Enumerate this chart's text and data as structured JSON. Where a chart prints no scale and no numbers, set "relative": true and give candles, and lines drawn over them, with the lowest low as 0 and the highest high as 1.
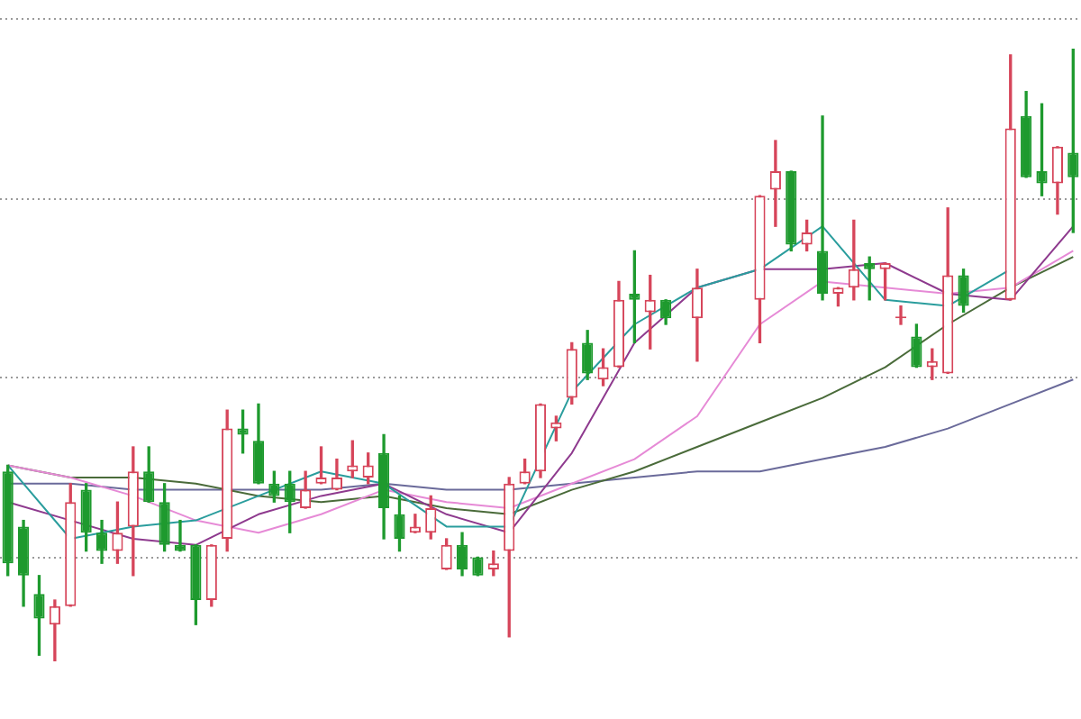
{
  "chart_data": {
    "type": "candlestick",
    "relative": true,
    "grid": true,
    "categories": [
      null,
      null,
      null,
      null,
      null,
      null,
      null,
      null,
      null,
      null,
      null,
      null,
      null,
      null,
      null,
      null,
      null,
      null,
      null,
      null,
      null,
      null,
      null,
      null,
      null,
      null,
      null,
      null,
      null,
      null,
      null,
      null,
      null,
      null,
      null,
      null,
      null,
      null,
      null,
      null,
      null,
      null,
      null,
      null,
      null,
      null,
      null,
      null,
      null,
      null,
      null,
      null,
      null,
      null,
      null,
      null,
      null,
      null,
      null,
      null,
      null,
      null,
      null,
      null,
      null,
      null,
      null,
      null,
      null
    ],
    "ohlc": [
      [
        0.31,
        0.32,
        0.14,
        0.16
      ],
      [
        0.22,
        0.23,
        0.09,
        0.14
      ],
      [
        0.11,
        0.14,
        0.01,
        0.07
      ],
      [
        0.06,
        0.1,
        0,
        0.09
      ],
      [
        0.09,
        0.29,
        0.09,
        0.26
      ],
      [
        0.28,
        0.29,
        0.18,
        0.21
      ],
      [
        0.21,
        0.23,
        0.16,
        0.18
      ],
      [
        0.18,
        0.26,
        0.16,
        0.21
      ],
      [
        0.22,
        0.35,
        0.14,
        0.31
      ],
      [
        0.31,
        0.35,
        0.26,
        0.26
      ],
      [
        0.26,
        0.29,
        0.18,
        0.19
      ],
      [
        0.19,
        0.23,
        0.18,
        0.18
      ],
      [
        0.19,
        0.19,
        0.06,
        0.1
      ],
      [
        0.1,
        0.19,
        0.09,
        0.19
      ],
      [
        0.2,
        0.41,
        0.18,
        0.38
      ],
      [
        0.38,
        0.41,
        0.34,
        0.37
      ],
      [
        0.36,
        0.42,
        0.29,
        0.29
      ],
      [
        0.29,
        0.31,
        0.26,
        0.27
      ],
      [
        0.29,
        0.31,
        0.21,
        0.26
      ],
      [
        0.25,
        0.31,
        0.25,
        0.28
      ],
      [
        0.29,
        0.35,
        0.29,
        0.3
      ],
      [
        0.28,
        0.33,
        0.28,
        0.3
      ],
      [
        0.31,
        0.36,
        0.3,
        0.32
      ],
      [
        0.3,
        0.34,
        0.29,
        0.32
      ],
      [
        0.34,
        0.37,
        0.2,
        0.25
      ],
      [
        0.24,
        0.27,
        0.18,
        0.2
      ],
      [
        0.21,
        0.24,
        0.21,
        0.22
      ],
      [
        0.21,
        0.27,
        0.2,
        0.25
      ],
      [
        0.15,
        0.2,
        0.15,
        0.19
      ],
      [
        0.19,
        0.21,
        0.14,
        0.15
      ],
      [
        0.17,
        0.17,
        0.14,
        0.14
      ],
      [
        0.15,
        0.18,
        0.14,
        0.16
      ],
      [
        0.18,
        0.3,
        0.04,
        0.29
      ],
      [
        0.29,
        0.33,
        0.29,
        0.31
      ],
      [
        0.31,
        0.42,
        0.3,
        0.42
      ],
      [
        0.38,
        0.4,
        0.36,
        0.39
      ],
      [
        0.43,
        0.52,
        0.42,
        0.51
      ],
      [
        0.52,
        0.54,
        0.46,
        0.47
      ],
      [
        0.46,
        0.51,
        0.45,
        0.48
      ],
      [
        0.48,
        0.62,
        0.48,
        0.59
      ],
      [
        0.6,
        0.67,
        0.52,
        0.59
      ],
      [
        0.57,
        0.63,
        0.51,
        0.59
      ],
      [
        0.59,
        0.59,
        0.55,
        0.56
      ],
      null,
      [
        0.56,
        0.64,
        0.49,
        0.61
      ],
      null,
      null,
      null,
      [
        0.59,
        0.76,
        0.52,
        0.76
      ],
      [
        0.77,
        0.85,
        0.71,
        0.8
      ],
      [
        0.8,
        0.8,
        0.67,
        0.68
      ],
      [
        0.68,
        0.72,
        0.67,
        0.7
      ],
      [
        0.67,
        0.89,
        0.59,
        0.6
      ],
      [
        0.6,
        0.61,
        0.58,
        0.61
      ],
      [
        0.61,
        0.72,
        0.59,
        0.64
      ],
      [
        0.65,
        0.66,
        0.59,
        0.64
      ],
      [
        0.64,
        0.65,
        0.59,
        0.65
      ],
      [
        0.56,
        0.58,
        0.55,
        0.56
      ],
      [
        0.53,
        0.55,
        0.48,
        0.48
      ],
      [
        0.48,
        0.51,
        0.46,
        0.49
      ],
      [
        0.47,
        0.74,
        0.47,
        0.63
      ],
      [
        0.63,
        0.64,
        0.57,
        0.58
      ],
      null,
      null,
      [
        0.59,
        0.99,
        0.59,
        0.87
      ],
      [
        0.89,
        0.93,
        0.79,
        0.79
      ],
      [
        0.8,
        0.91,
        0.76,
        0.78
      ],
      [
        0.78,
        0.84,
        0.73,
        0.84
      ],
      [
        0.83,
        1,
        0.7,
        0.79
      ]
    ],
    "colors": [
      "#1e9a2e",
      "#1e9a2e",
      "#1e9a2e",
      "#d6455a",
      "#d6455a",
      "#1e9a2e",
      "#1e9a2e",
      "#d6455a",
      "#d6455a",
      "#1e9a2e",
      "#1e9a2e",
      "#1e9a2e",
      "#1e9a2e",
      "#d6455a",
      "#d6455a",
      "#1e9a2e",
      "#1e9a2e",
      "#1e9a2e",
      "#1e9a2e",
      "#d6455a",
      "#d6455a",
      "#d6455a",
      "#d6455a",
      "#d6455a",
      "#1e9a2e",
      "#1e9a2e",
      "#d6455a",
      "#d6455a",
      "#d6455a",
      "#1e9a2e",
      "#1e9a2e",
      "#d6455a",
      "#d6455a",
      "#d6455a",
      "#d6455a",
      "#d6455a",
      "#d6455a",
      "#1e9a2e",
      "#d6455a",
      "#d6455a",
      "#1e9a2e",
      "#d6455a",
      "#1e9a2e",
      null,
      "#d6455a",
      null,
      null,
      null,
      "#d6455a",
      "#d6455a",
      "#1e9a2e",
      "#d6455a",
      "#1e9a2e",
      "#d6455a",
      "#d6455a",
      "#1e9a2e",
      "#d6455a",
      "#d6455a",
      "#1e9a2e",
      "#d6455a",
      "#d6455a",
      "#1e9a2e",
      null,
      null,
      "#d6455a",
      "#1e9a2e",
      "#1e9a2e",
      "#d6455a",
      "#1e9a2e"
    ],
    "series": [
      {
        "type": "line",
        "color": "#2a9d9d",
        "values": [
          0.32,
          null,
          null,
          null,
          0.2,
          null,
          null,
          null,
          0.22,
          null,
          null,
          null,
          0.23,
          null,
          null,
          null,
          0.27,
          null,
          null,
          null,
          0.31,
          null,
          null,
          null,
          0.29,
          null,
          null,
          null,
          0.22,
          null,
          null,
          null,
          0.22,
          null,
          null,
          null,
          0.44,
          null,
          null,
          null,
          0.55,
          null,
          null,
          null,
          0.61,
          null,
          null,
          null,
          0.64,
          null,
          null,
          null,
          0.71,
          null,
          null,
          null,
          0.59,
          null,
          null,
          null,
          0.58,
          null,
          null,
          null,
          0.64,
          null,
          null,
          null,
          null
        ]
      },
      {
        "type": "line",
        "color": "#8e3a8e",
        "values": [
          0.26,
          null,
          null,
          null,
          0.23,
          null,
          null,
          null,
          0.2,
          null,
          null,
          null,
          0.19,
          null,
          null,
          null,
          0.24,
          null,
          null,
          null,
          0.27,
          null,
          null,
          null,
          0.29,
          null,
          null,
          null,
          0.24,
          null,
          null,
          null,
          0.21,
          null,
          null,
          null,
          0.34,
          null,
          null,
          null,
          0.52,
          null,
          null,
          null,
          0.61,
          null,
          null,
          null,
          0.64,
          null,
          null,
          null,
          0.64,
          null,
          null,
          null,
          0.65,
          null,
          null,
          null,
          0.6,
          null,
          null,
          null,
          0.59,
          null,
          null,
          null,
          0.71
        ]
      },
      {
        "type": "line",
        "color": "#e68ad6",
        "values": [
          0.32,
          null,
          null,
          null,
          0.3,
          null,
          null,
          null,
          0.27,
          null,
          null,
          null,
          0.23,
          null,
          null,
          null,
          0.21,
          null,
          null,
          null,
          0.24,
          null,
          null,
          null,
          0.28,
          null,
          null,
          null,
          0.26,
          null,
          null,
          null,
          0.25,
          null,
          null,
          null,
          0.29,
          null,
          null,
          null,
          0.33,
          null,
          null,
          null,
          0.4,
          null,
          null,
          null,
          0.55,
          null,
          null,
          null,
          0.62,
          null,
          null,
          null,
          0.61,
          null,
          null,
          null,
          0.6,
          null,
          null,
          null,
          0.61,
          null,
          null,
          null,
          0.67
        ]
      },
      {
        "type": "line",
        "color": "#4a6b3a",
        "values": [
          0.32,
          null,
          null,
          null,
          0.3,
          null,
          null,
          null,
          0.3,
          null,
          null,
          null,
          0.29,
          null,
          null,
          null,
          0.27,
          null,
          null,
          null,
          0.26,
          null,
          null,
          null,
          0.27,
          null,
          null,
          null,
          0.25,
          null,
          null,
          null,
          0.24,
          null,
          null,
          null,
          0.28,
          null,
          null,
          null,
          0.31,
          null,
          null,
          null,
          0.35,
          null,
          null,
          null,
          0.39,
          null,
          null,
          null,
          0.43,
          null,
          null,
          null,
          0.48,
          null,
          null,
          null,
          0.55,
          null,
          null,
          null,
          0.61,
          null,
          null,
          null,
          0.66
        ]
      },
      {
        "type": "line",
        "color": "#6a6a9a",
        "values": [
          0.29,
          null,
          null,
          null,
          0.29,
          null,
          null,
          null,
          0.28,
          null,
          null,
          null,
          0.28,
          null,
          null,
          null,
          0.28,
          null,
          null,
          null,
          0.28,
          null,
          null,
          null,
          0.29,
          null,
          null,
          null,
          0.28,
          null,
          null,
          null,
          0.28,
          null,
          null,
          null,
          0.29,
          null,
          null,
          null,
          0.3,
          null,
          null,
          null,
          0.31,
          null,
          null,
          null,
          0.31,
          null,
          null,
          null,
          0.33,
          null,
          null,
          null,
          0.35,
          null,
          null,
          null,
          0.38,
          null,
          null,
          null,
          0.42,
          null,
          null,
          null,
          0.46
        ]
      }
    ]
  }
}
